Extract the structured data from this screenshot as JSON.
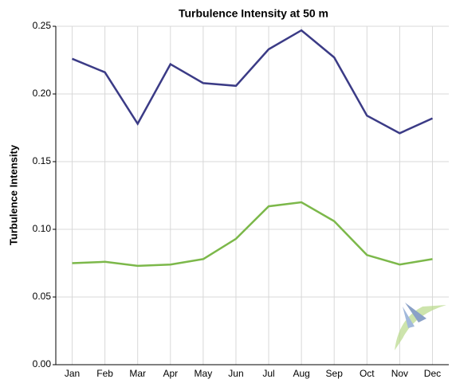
{
  "chart_data": {
    "type": "line",
    "title": "Turbulence Intensity at 50 m",
    "y_label": "Turbulence Intensity",
    "categories": [
      "Jan",
      "Feb",
      "Mar",
      "Apr",
      "May",
      "Jun",
      "Jul",
      "Aug",
      "Sep",
      "Oct",
      "Nov",
      "Dec"
    ],
    "series": [
      {
        "color": "#3b3b86",
        "values": [
          0.226,
          0.216,
          0.178,
          0.222,
          0.208,
          0.206,
          0.233,
          0.247,
          0.227,
          0.184,
          0.171,
          0.182
        ]
      },
      {
        "color": "#7cb84a",
        "values": [
          0.075,
          0.076,
          0.073,
          0.074,
          0.078,
          0.093,
          0.117,
          0.12,
          0.106,
          0.081,
          0.074,
          0.078
        ]
      }
    ],
    "ylim": [
      0,
      0.25
    ],
    "yticks": [
      {
        "value": 0,
        "label": "0.00"
      },
      0.05,
      {
        "value": 0.1,
        "label": "0.10"
      },
      0.15,
      {
        "value": 0.2,
        "label": "0.20"
      },
      0.25
    ],
    "grid": true
  }
}
